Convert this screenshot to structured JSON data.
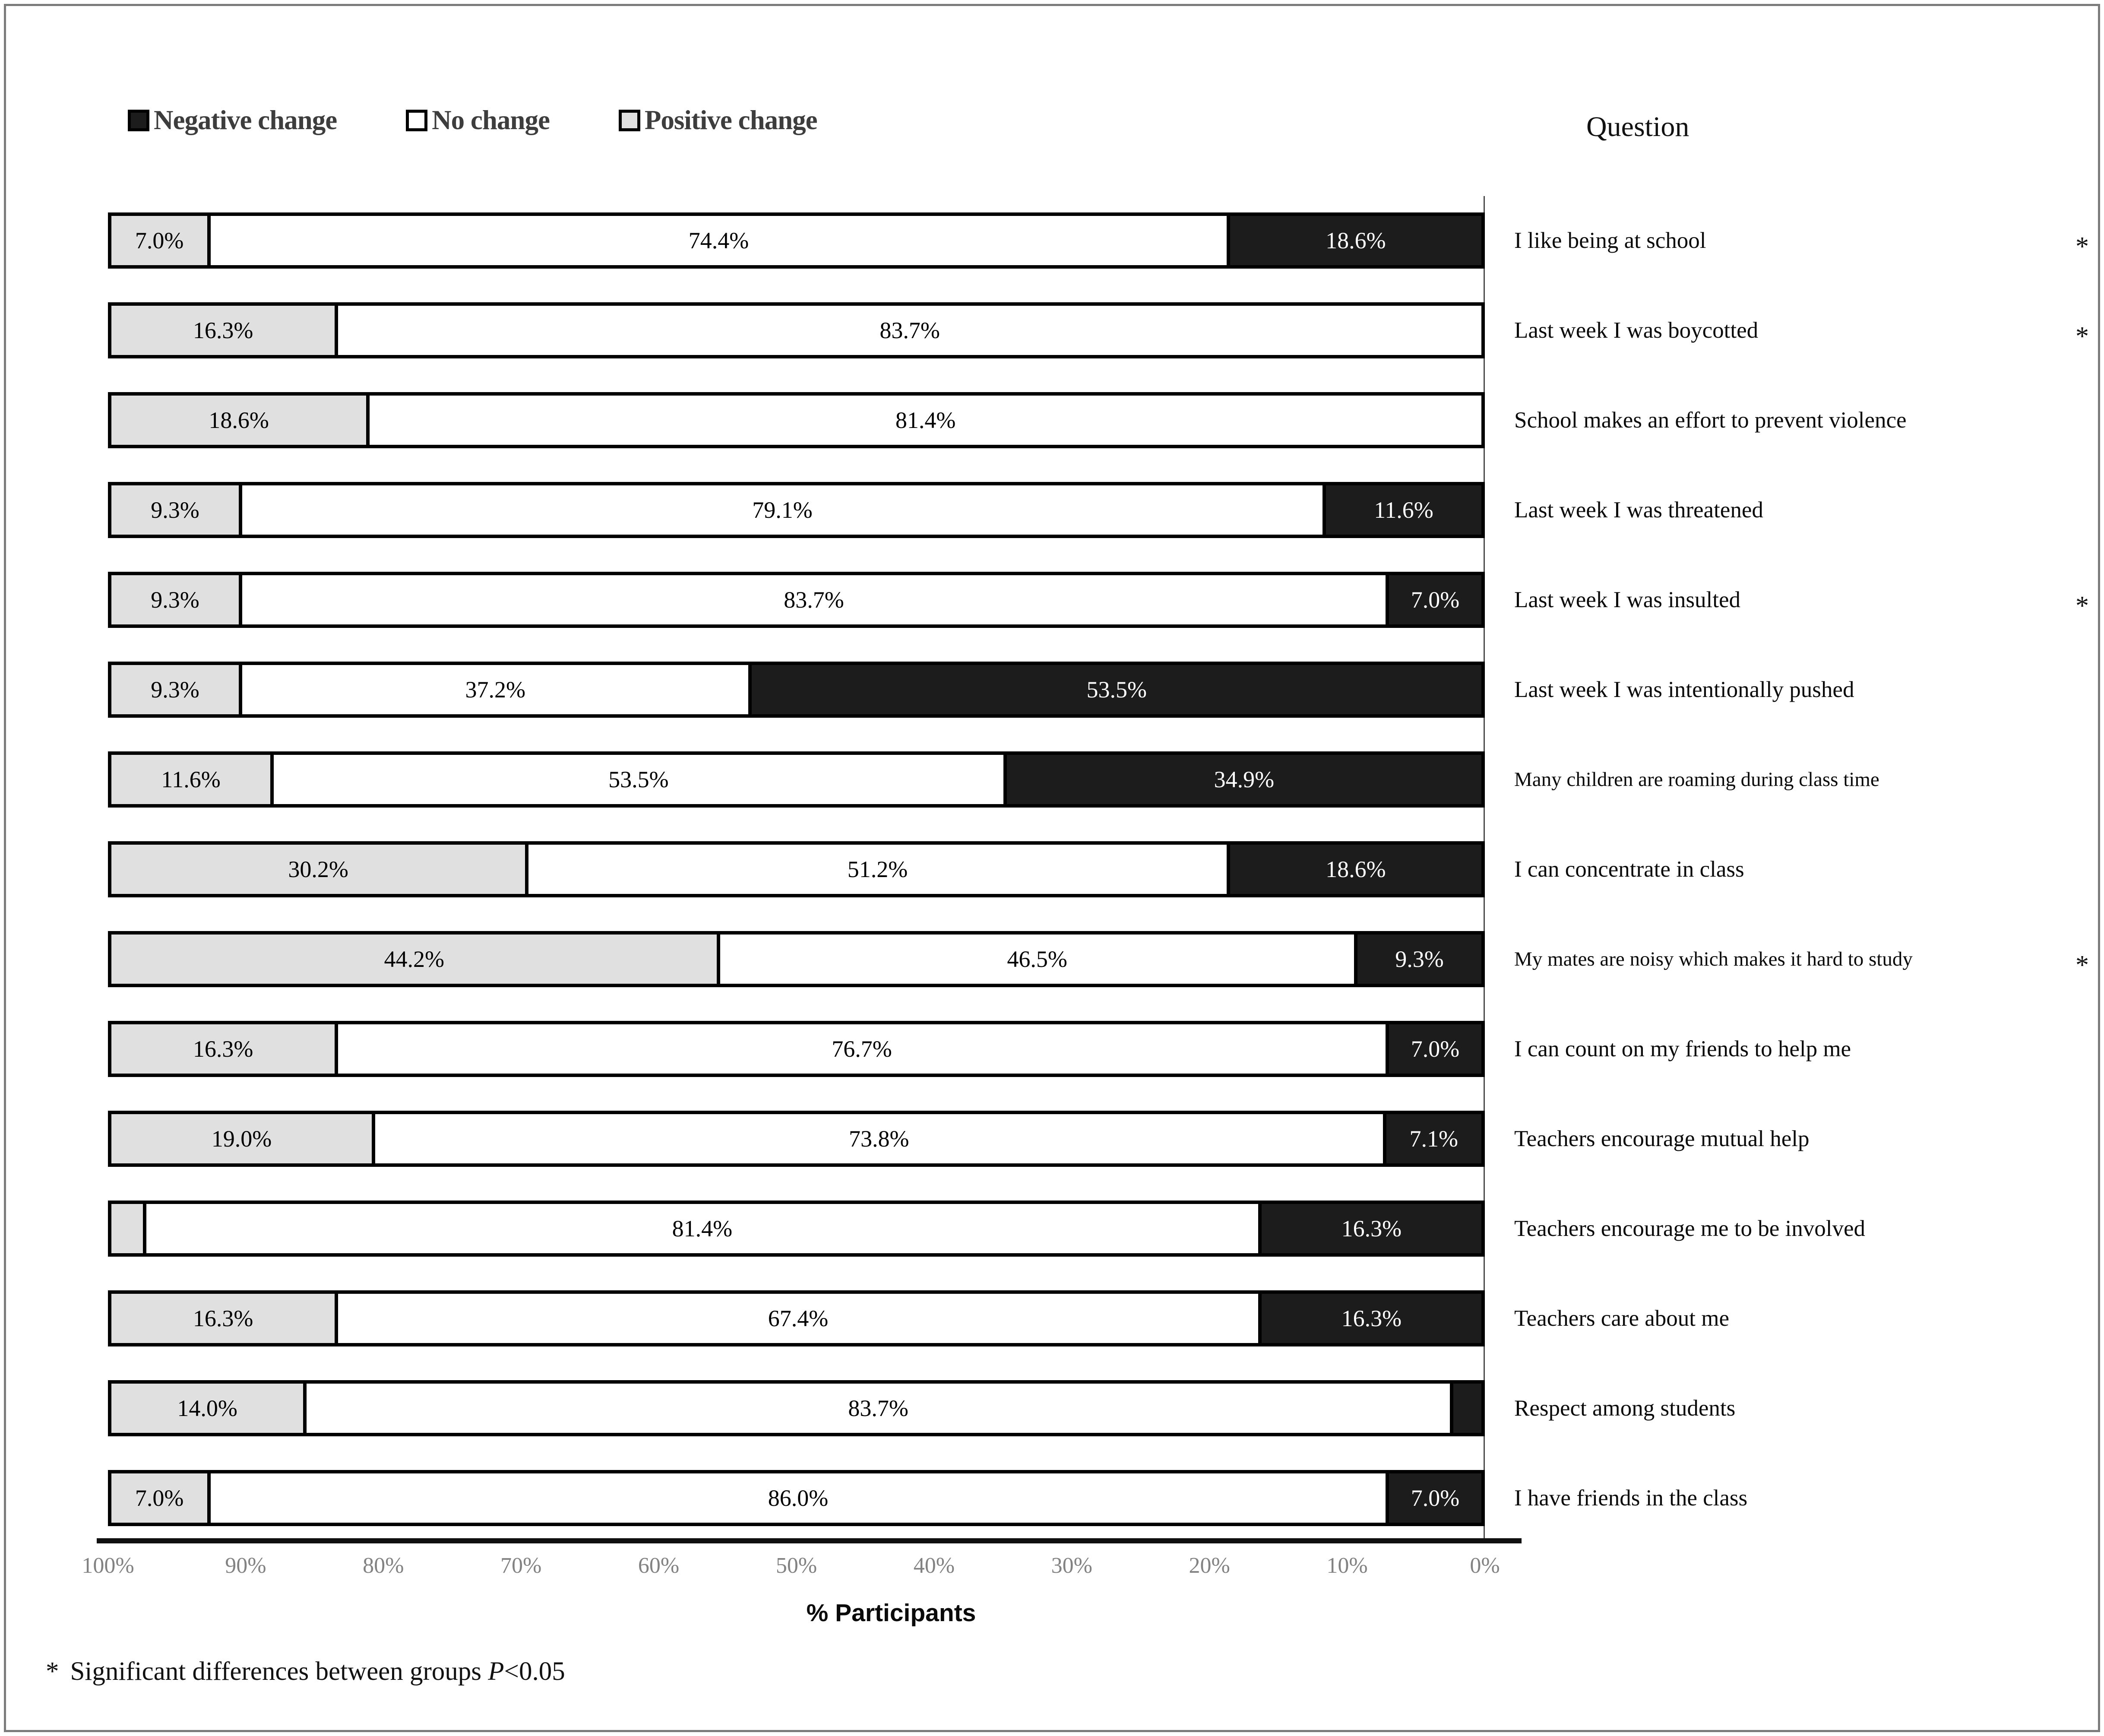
{
  "legend": {
    "items": [
      {
        "key": "negative",
        "label": "Negative change",
        "color": "#1c1c1c"
      },
      {
        "key": "no_change",
        "label": "No change",
        "color": "#ffffff"
      },
      {
        "key": "positive",
        "label": "Positive change",
        "color": "#e0e0e0"
      }
    ]
  },
  "question_header": "Question",
  "axis": {
    "ticks": [
      "100%",
      "90%",
      "80%",
      "70%",
      "60%",
      "50%",
      "40%",
      "30%",
      "20%",
      "10%",
      "0%"
    ],
    "xlabel": "% Participants"
  },
  "footnote": {
    "marker": "*",
    "text": "Significant differences between groups ",
    "p": "P",
    "threshold": "<0.05"
  },
  "chart_data": {
    "type": "bar",
    "stacked": true,
    "orientation": "horizontal",
    "x_axis_reversed": true,
    "xlim": [
      100,
      0
    ],
    "xlabel": "% Participants",
    "legend_position": "top",
    "series_order": [
      "positive",
      "no_change",
      "negative"
    ],
    "series_names": {
      "positive": "Positive change",
      "no_change": "No change",
      "negative": "Negative change"
    },
    "rows": [
      {
        "question": "I like being at school",
        "significant": true,
        "segments": [
          {
            "key": "positive",
            "value": 7.0,
            "label": "7.0%"
          },
          {
            "key": "no_change",
            "value": 74.4,
            "label": "74.4%"
          },
          {
            "key": "negative",
            "value": 18.6,
            "label": "18.6%"
          }
        ]
      },
      {
        "question": "Last week I was boycotted",
        "significant": true,
        "segments": [
          {
            "key": "positive",
            "value": 16.3,
            "label": "16.3%"
          },
          {
            "key": "no_change",
            "value": 83.7,
            "label": "83.7%"
          },
          {
            "key": "negative",
            "value": 0,
            "label": ""
          }
        ]
      },
      {
        "question": "School makes an effort to prevent violence",
        "significant": false,
        "segments": [
          {
            "key": "positive",
            "value": 18.6,
            "label": "18.6%"
          },
          {
            "key": "no_change",
            "value": 81.4,
            "label": "81.4%"
          },
          {
            "key": "negative",
            "value": 0,
            "label": ""
          }
        ]
      },
      {
        "question": "Last week I was threatened",
        "significant": false,
        "segments": [
          {
            "key": "positive",
            "value": 9.3,
            "label": "9.3%"
          },
          {
            "key": "no_change",
            "value": 79.1,
            "label": "79.1%"
          },
          {
            "key": "negative",
            "value": 11.6,
            "label": "11.6%"
          }
        ]
      },
      {
        "question": "Last week I was insulted",
        "significant": true,
        "segments": [
          {
            "key": "positive",
            "value": 9.3,
            "label": "9.3%"
          },
          {
            "key": "no_change",
            "value": 83.7,
            "label": "83.7%"
          },
          {
            "key": "negative",
            "value": 7.0,
            "label": "7.0%"
          }
        ]
      },
      {
        "question": "Last week I was intentionally pushed",
        "significant": false,
        "segments": [
          {
            "key": "positive",
            "value": 9.3,
            "label": "9.3%"
          },
          {
            "key": "no_change",
            "value": 37.2,
            "label": "37.2%"
          },
          {
            "key": "negative",
            "value": 53.5,
            "label": "53.5%"
          }
        ]
      },
      {
        "question": "Many children are roaming during class time",
        "significant": false,
        "segments": [
          {
            "key": "positive",
            "value": 11.6,
            "label": "11.6%"
          },
          {
            "key": "no_change",
            "value": 53.5,
            "label": "53.5%"
          },
          {
            "key": "negative",
            "value": 34.9,
            "label": "34.9%"
          }
        ]
      },
      {
        "question": "I can concentrate in class",
        "significant": false,
        "segments": [
          {
            "key": "positive",
            "value": 30.2,
            "label": "30.2%"
          },
          {
            "key": "no_change",
            "value": 51.2,
            "label": "51.2%"
          },
          {
            "key": "negative",
            "value": 18.6,
            "label": "18.6%"
          }
        ]
      },
      {
        "question": "My mates are noisy which makes it hard to study",
        "significant": true,
        "segments": [
          {
            "key": "positive",
            "value": 44.2,
            "label": "44.2%"
          },
          {
            "key": "no_change",
            "value": 46.5,
            "label": "46.5%"
          },
          {
            "key": "negative",
            "value": 9.3,
            "label": "9.3%"
          }
        ]
      },
      {
        "question": "I can count on my friends to help me",
        "significant": false,
        "segments": [
          {
            "key": "positive",
            "value": 16.3,
            "label": "16.3%"
          },
          {
            "key": "no_change",
            "value": 76.7,
            "label": "76.7%"
          },
          {
            "key": "negative",
            "value": 7.0,
            "label": "7.0%"
          }
        ]
      },
      {
        "question": "Teachers encourage mutual help",
        "significant": false,
        "segments": [
          {
            "key": "positive",
            "value": 19.0,
            "label": "19.0%"
          },
          {
            "key": "no_change",
            "value": 73.8,
            "label": "73.8%"
          },
          {
            "key": "negative",
            "value": 7.1,
            "label": "7.1%"
          }
        ]
      },
      {
        "question": "Teachers encourage me to be involved",
        "significant": false,
        "segments": [
          {
            "key": "positive",
            "value": 2.3,
            "label": "2.3%"
          },
          {
            "key": "no_change",
            "value": 81.4,
            "label": "81.4%"
          },
          {
            "key": "negative",
            "value": 16.3,
            "label": "16.3%"
          }
        ]
      },
      {
        "question": "Teachers care about me",
        "significant": false,
        "segments": [
          {
            "key": "positive",
            "value": 16.3,
            "label": "16.3%"
          },
          {
            "key": "no_change",
            "value": 67.4,
            "label": "67.4%"
          },
          {
            "key": "negative",
            "value": 16.3,
            "label": "16.3%"
          }
        ]
      },
      {
        "question": "Respect among students",
        "significant": false,
        "segments": [
          {
            "key": "positive",
            "value": 14.0,
            "label": "14.0%"
          },
          {
            "key": "no_change",
            "value": 83.7,
            "label": "83.7%"
          },
          {
            "key": "negative",
            "value": 2.3,
            "label": "2.3%"
          }
        ]
      },
      {
        "question": "I have friends in the class",
        "significant": false,
        "segments": [
          {
            "key": "positive",
            "value": 7.0,
            "label": "7.0%"
          },
          {
            "key": "no_change",
            "value": 86.0,
            "label": "86.0%"
          },
          {
            "key": "negative",
            "value": 7.0,
            "label": "7.0%"
          }
        ]
      }
    ]
  }
}
